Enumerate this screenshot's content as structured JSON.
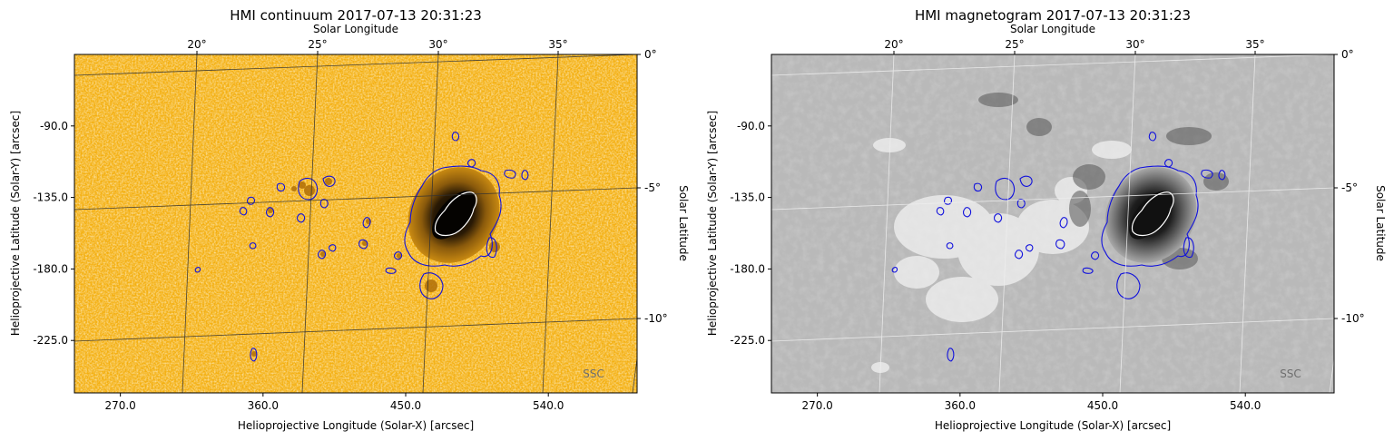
{
  "chart_data": [
    {
      "type": "heatmap",
      "title": "HMI continuum 2017-07-13 20:31:23",
      "xlabel": "Helioprojective Longitude (Solar-X) [arcsec]",
      "ylabel": "Helioprojective Latitude (Solar-Y) [arcsec]",
      "top_axis_label": "Solar Longitude",
      "right_axis_label": "Solar Latitude",
      "xlim": [
        241,
        596
      ],
      "ylim": [
        -258,
        -45
      ],
      "x_ticks": [
        {
          "value": 270,
          "label": "270.0"
        },
        {
          "value": 360,
          "label": "360.0"
        },
        {
          "value": 450,
          "label": "450.0"
        },
        {
          "value": 540,
          "label": "540.0"
        }
      ],
      "y_ticks": [
        {
          "value": -90,
          "label": "-90.0"
        },
        {
          "value": -135,
          "label": "-135.0"
        },
        {
          "value": -180,
          "label": "-180.0"
        },
        {
          "value": -225,
          "label": "-225.0"
        }
      ],
      "lon_ticks": [
        "20°",
        "25°",
        "30°",
        "35°"
      ],
      "lat_ticks": [
        "0°",
        "-5°",
        "-10°"
      ],
      "colormap": "yellow-orange (continuum intensity)",
      "colors": {
        "background": "#f4b012",
        "umbra": "#050301",
        "contour_outer": "#1111dd",
        "contour_inner": "#ffffff",
        "grid": "#333333"
      },
      "watermark": "SSC"
    },
    {
      "type": "heatmap",
      "title": "HMI magnetogram 2017-07-13 20:31:23",
      "xlabel": "Helioprojective Longitude (Solar-X) [arcsec]",
      "ylabel": "Helioprojective Latitude (Solar-Y) [arcsec]",
      "top_axis_label": "Solar Longitude",
      "right_axis_label": "Solar Latitude",
      "xlim": [
        241,
        596
      ],
      "ylim": [
        -258,
        -45
      ],
      "x_ticks": [
        {
          "value": 270,
          "label": "270.0"
        },
        {
          "value": 360,
          "label": "360.0"
        },
        {
          "value": 450,
          "label": "450.0"
        },
        {
          "value": 540,
          "label": "540.0"
        }
      ],
      "y_ticks": [
        {
          "value": -90,
          "label": "-90.0"
        },
        {
          "value": -135,
          "label": "-135.0"
        },
        {
          "value": -180,
          "label": "-180.0"
        },
        {
          "value": -225,
          "label": "-225.0"
        }
      ],
      "lon_ticks": [
        "20°",
        "25°",
        "30°",
        "35°"
      ],
      "lat_ticks": [
        "0°",
        "-5°",
        "-10°"
      ],
      "colormap": "grayscale (line-of-sight magnetic field)",
      "colors": {
        "background": "#b9b9b9",
        "umbra": "#111111",
        "contour_outer": "#1111dd",
        "contour_inner": "#ffffff",
        "grid": "#eeeeee"
      },
      "watermark": "SSC"
    }
  ]
}
